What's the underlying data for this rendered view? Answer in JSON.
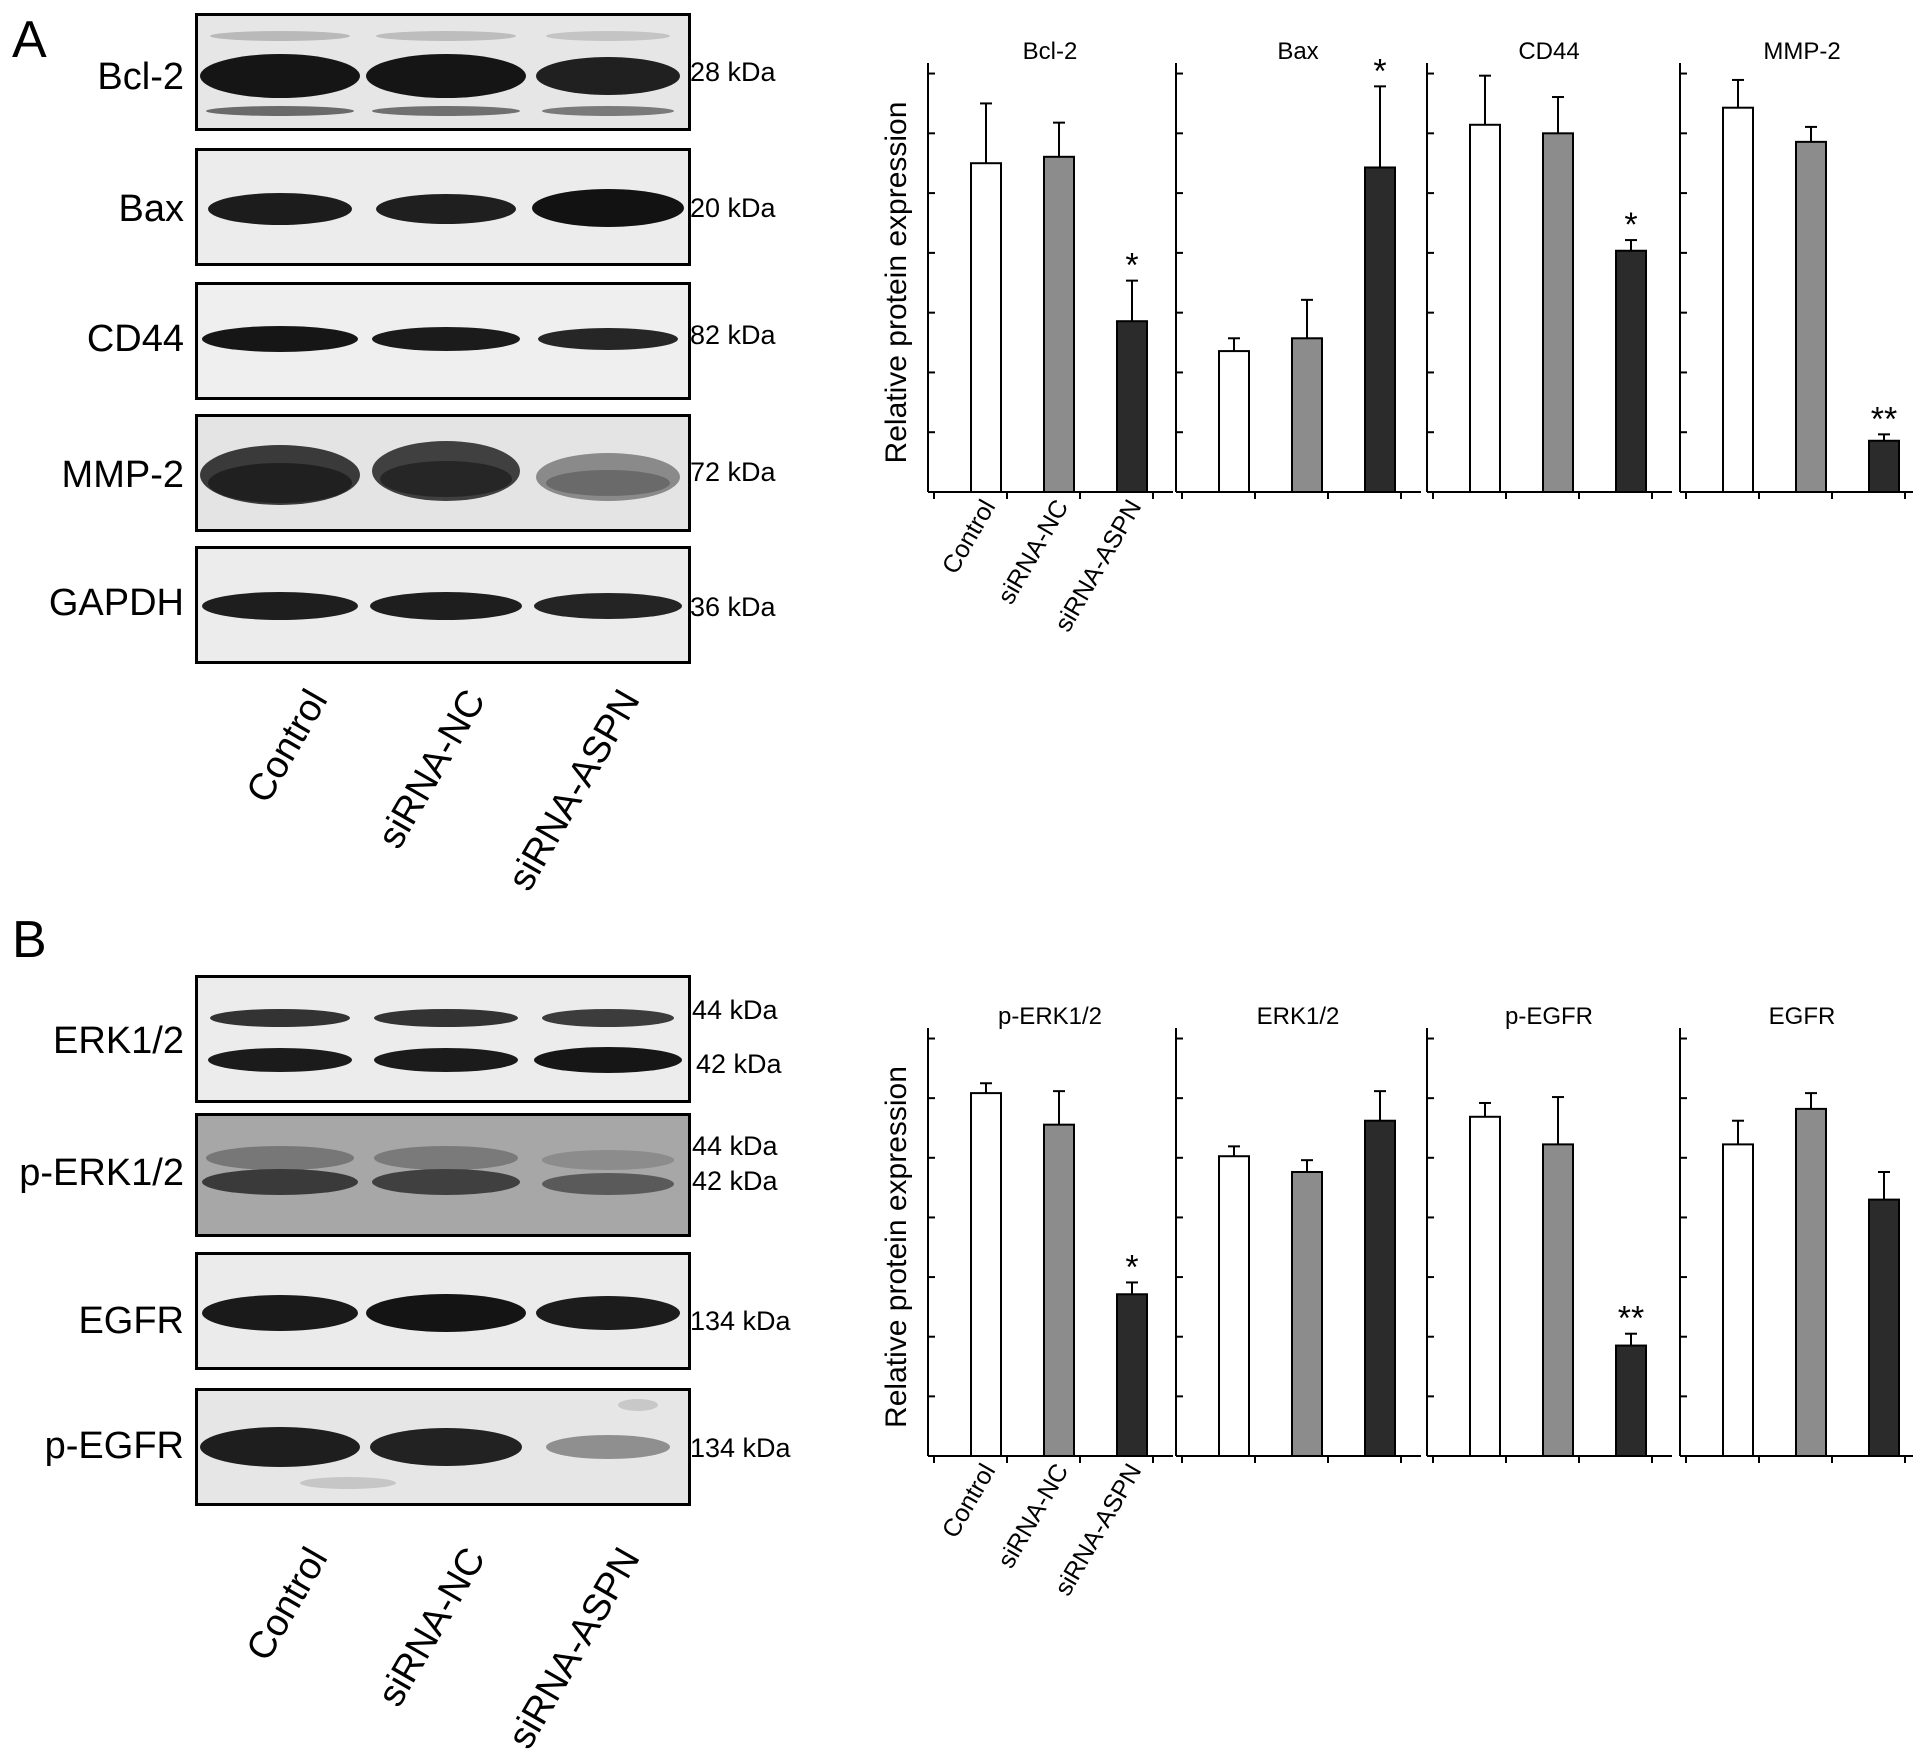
{
  "panels": [
    {
      "letter": "A",
      "blots": [
        {
          "protein": "Bcl-2",
          "kda": [
            "28 kDa"
          ]
        },
        {
          "protein": "Bax",
          "kda": [
            "20 kDa"
          ]
        },
        {
          "protein": "CD44",
          "kda": [
            "82 kDa"
          ]
        },
        {
          "protein": "MMP-2",
          "kda": [
            "72 kDa"
          ]
        },
        {
          "protein": "GAPDH",
          "kda": [
            "36 kDa"
          ]
        }
      ],
      "lanes": [
        "Control",
        "siRNA-NC",
        "siRNA-ASPN"
      ]
    },
    {
      "letter": "B",
      "blots": [
        {
          "protein": "ERK1/2",
          "kda": [
            "44 kDa",
            "42 kDa"
          ]
        },
        {
          "protein": "p-ERK1/2",
          "kda": [
            "44 kDa",
            "42 kDa"
          ]
        },
        {
          "protein": "EGFR",
          "kda": [
            "134 kDa"
          ]
        },
        {
          "protein": "p-EGFR",
          "kda": [
            "134 kDa"
          ]
        }
      ],
      "lanes": [
        "Control",
        "siRNA-NC",
        "siRNA-ASPN"
      ]
    }
  ],
  "colors": {
    "control": "#ffffff",
    "sirna_nc": "#8c8c8c",
    "sirna_aspn": "#2b2b2b",
    "axis": "#000000"
  },
  "chart_data": [
    {
      "panel": "A",
      "type": "bar",
      "title": "Bcl-2",
      "ylabel": "Relative protein expression",
      "categories": [
        "Control",
        "siRNA-NC",
        "siRNA-ASPN"
      ],
      "values": [
        0.77,
        0.785,
        0.4
      ],
      "errors": [
        0.14,
        0.08,
        0.095
      ],
      "significance": [
        "",
        "",
        "*"
      ],
      "ylim": [
        0,
        1
      ]
    },
    {
      "panel": "A",
      "type": "bar",
      "title": "Bax",
      "categories": [
        "Control",
        "siRNA-NC",
        "siRNA-ASPN"
      ],
      "values": [
        0.33,
        0.36,
        0.76
      ],
      "errors": [
        0.03,
        0.09,
        0.19
      ],
      "significance": [
        "",
        "",
        "*"
      ],
      "ylim": [
        0,
        1
      ]
    },
    {
      "panel": "A",
      "type": "bar",
      "title": "CD44",
      "categories": [
        "Control",
        "siRNA-NC",
        "siRNA-ASPN"
      ],
      "values": [
        0.86,
        0.84,
        0.565
      ],
      "errors": [
        0.115,
        0.085,
        0.025
      ],
      "significance": [
        "",
        "",
        "*"
      ],
      "ylim": [
        0,
        1
      ]
    },
    {
      "panel": "A",
      "type": "bar",
      "title": "MMP-2",
      "categories": [
        "Control",
        "siRNA-NC",
        "siRNA-ASPN"
      ],
      "values": [
        0.9,
        0.82,
        0.12
      ],
      "errors": [
        0.065,
        0.035,
        0.015
      ],
      "significance": [
        "",
        "",
        "**"
      ],
      "ylim": [
        0,
        1
      ]
    },
    {
      "panel": "B",
      "type": "bar",
      "title": "p-ERK1/2",
      "ylabel": "Relative protein expression",
      "categories": [
        "Control",
        "siRNA-NC",
        "siRNA-ASPN"
      ],
      "values": [
        0.92,
        0.84,
        0.41
      ],
      "errors": [
        0.025,
        0.085,
        0.03
      ],
      "significance": [
        "",
        "",
        "*"
      ],
      "ylim": [
        0,
        1.08
      ]
    },
    {
      "panel": "B",
      "type": "bar",
      "title": "ERK1/2",
      "categories": [
        "Control",
        "siRNA-NC",
        "siRNA-ASPN"
      ],
      "values": [
        0.76,
        0.72,
        0.85
      ],
      "errors": [
        0.025,
        0.03,
        0.075
      ],
      "significance": [
        "",
        "",
        ""
      ],
      "ylim": [
        0,
        1.08
      ]
    },
    {
      "panel": "B",
      "type": "bar",
      "title": "p-EGFR",
      "categories": [
        "Control",
        "siRNA-NC",
        "siRNA-ASPN"
      ],
      "values": [
        0.86,
        0.79,
        0.28
      ],
      "errors": [
        0.035,
        0.12,
        0.03
      ],
      "significance": [
        "",
        "",
        "**"
      ],
      "ylim": [
        0,
        1.08
      ]
    },
    {
      "panel": "B",
      "type": "bar",
      "title": "EGFR",
      "categories": [
        "Control",
        "siRNA-NC",
        "siRNA-ASPN"
      ],
      "values": [
        0.79,
        0.88,
        0.65
      ],
      "errors": [
        0.06,
        0.04,
        0.07
      ],
      "significance": [
        "",
        "",
        ""
      ],
      "ylim": [
        0,
        1.08
      ]
    }
  ]
}
